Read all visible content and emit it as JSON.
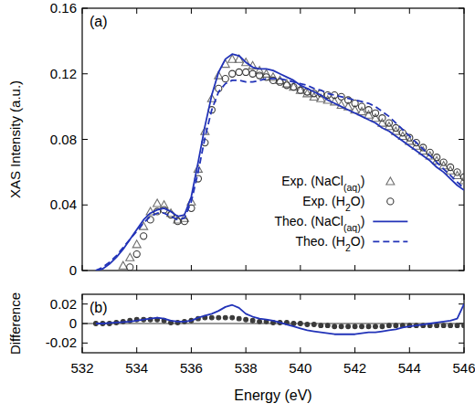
{
  "chart_data": [
    {
      "type": "line",
      "y_label": "XAS Intensity (a.u.)",
      "annotations": [
        {
          "text": "(a)"
        }
      ],
      "xlim": [
        532,
        546
      ],
      "xticks": [
        532,
        534,
        536,
        538,
        540,
        542,
        544,
        546
      ],
      "ylim": [
        0,
        0.16
      ],
      "yticks": [
        0,
        0.04,
        0.08,
        0.12,
        0.16
      ],
      "tick_labels": "y",
      "legend": "right",
      "x": [
        532.5,
        532.75,
        533,
        533.25,
        533.5,
        533.75,
        534,
        534.25,
        534.5,
        534.75,
        535,
        535.25,
        535.5,
        535.75,
        536,
        536.25,
        536.5,
        536.75,
        537,
        537.25,
        537.5,
        537.75,
        538,
        538.25,
        538.5,
        538.75,
        539,
        539.25,
        539.5,
        539.75,
        540,
        540.25,
        540.5,
        540.75,
        541,
        541.25,
        541.5,
        541.75,
        542,
        542.25,
        542.5,
        542.75,
        543,
        543.25,
        543.5,
        543.75,
        544,
        544.25,
        544.5,
        544.75,
        545,
        545.25,
        545.5,
        545.75,
        546
      ],
      "series": [
        {
          "name": "Exp. (NaCl(aq))",
          "type": "scatter",
          "marker": "triangle",
          "color": "#707070",
          "values": [
            null,
            null,
            null,
            null,
            0.003,
            0.008,
            0.016,
            0.027,
            0.036,
            0.041,
            0.04,
            0.035,
            0.031,
            0.032,
            0.042,
            0.062,
            0.085,
            0.105,
            0.119,
            0.126,
            0.129,
            0.129,
            0.127,
            0.125,
            0.122,
            0.12,
            0.118,
            0.116,
            0.114,
            0.112,
            0.11,
            0.108,
            0.106,
            0.105,
            0.104,
            0.103,
            0.101,
            0.1,
            0.098,
            0.097,
            0.095,
            0.093,
            0.09,
            0.088,
            0.085,
            0.082,
            0.079,
            0.076,
            0.073,
            0.07,
            0.067,
            0.064,
            0.061,
            0.058,
            0.055
          ]
        },
        {
          "name": "Exp. (H2O)",
          "type": "scatter",
          "marker": "circle",
          "color": "#3a3a3a",
          "values": [
            null,
            null,
            null,
            null,
            null,
            0.002,
            0.01,
            0.021,
            0.031,
            0.036,
            0.037,
            0.034,
            0.03,
            0.03,
            0.038,
            0.056,
            0.078,
            0.098,
            0.111,
            0.117,
            0.12,
            0.121,
            0.121,
            0.12,
            0.119,
            0.118,
            0.116,
            0.115,
            0.113,
            0.112,
            0.11,
            0.109,
            0.108,
            0.108,
            0.107,
            0.107,
            0.106,
            0.104,
            0.102,
            0.1,
            0.098,
            0.096,
            0.093,
            0.09,
            0.087,
            0.084,
            0.081,
            0.078,
            0.075,
            0.072,
            0.069,
            0.066,
            0.063,
            0.06,
            0.057
          ]
        },
        {
          "name": "Theo. (NaCl(aq))",
          "type": "line",
          "line_style": "solid",
          "color": "#2233b8",
          "values": [
            0,
            0.001,
            0.004,
            0.008,
            0.013,
            0.019,
            0.025,
            0.031,
            0.035,
            0.037,
            0.038,
            0.036,
            0.033,
            0.034,
            0.045,
            0.066,
            0.088,
            0.107,
            0.121,
            0.129,
            0.132,
            0.131,
            0.127,
            0.124,
            0.123,
            0.123,
            0.122,
            0.12,
            0.118,
            0.116,
            0.113,
            0.111,
            0.109,
            0.107,
            0.104,
            0.102,
            0.1,
            0.098,
            0.096,
            0.094,
            0.092,
            0.09,
            0.087,
            0.085,
            0.082,
            0.079,
            0.076,
            0.073,
            0.07,
            0.067,
            0.063,
            0.06,
            0.056,
            0.052,
            0.049
          ]
        },
        {
          "name": "Theo. (H2O)",
          "type": "line",
          "line_style": "dashed",
          "color": "#2233b8",
          "values": [
            0,
            0.002,
            0.005,
            0.009,
            0.014,
            0.019,
            0.024,
            0.029,
            0.033,
            0.035,
            0.035,
            0.033,
            0.031,
            0.032,
            0.042,
            0.06,
            0.081,
            0.098,
            0.109,
            0.114,
            0.116,
            0.116,
            0.115,
            0.115,
            0.116,
            0.117,
            0.117,
            0.117,
            0.116,
            0.115,
            0.114,
            0.113,
            0.111,
            0.11,
            0.108,
            0.107,
            0.106,
            0.105,
            0.104,
            0.103,
            0.102,
            0.1,
            0.097,
            0.094,
            0.09,
            0.086,
            0.082,
            0.078,
            0.074,
            0.07,
            0.066,
            0.062,
            0.058,
            0.054,
            0.05
          ]
        }
      ]
    },
    {
      "type": "line",
      "x_label": "Energy (eV)",
      "y_label": "Difference",
      "annotations": [
        {
          "text": "(b)"
        }
      ],
      "xlim": [
        532,
        546
      ],
      "xticks": [
        532,
        534,
        536,
        538,
        540,
        542,
        544,
        546
      ],
      "ylim": [
        -0.03,
        0.03
      ],
      "yticks": [
        -0.02,
        0,
        0.02
      ],
      "tick_labels": true,
      "x": [
        532.5,
        532.75,
        533,
        533.25,
        533.5,
        533.75,
        534,
        534.25,
        534.5,
        534.75,
        535,
        535.25,
        535.5,
        535.75,
        536,
        536.25,
        536.5,
        536.75,
        537,
        537.25,
        537.5,
        537.75,
        538,
        538.25,
        538.5,
        538.75,
        539,
        539.25,
        539.5,
        539.75,
        540,
        540.25,
        540.5,
        540.75,
        541,
        541.25,
        541.5,
        541.75,
        542,
        542.25,
        542.5,
        542.75,
        543,
        543.25,
        543.5,
        543.75,
        544,
        544.25,
        544.5,
        544.75,
        545,
        545.25,
        545.5,
        545.75,
        546
      ],
      "series": [
        {
          "type": "scatter",
          "marker": "circle",
          "color": "#3a3a3a",
          "values": [
            0,
            0,
            0,
            0.001,
            0.002,
            0.003,
            0.004,
            0.004,
            0.004,
            0.004,
            0.003,
            0.001,
            0.001,
            0.002,
            0.003,
            0.005,
            0.006,
            0.006,
            0.006,
            0.006,
            0.006,
            0.005,
            0.004,
            0.003,
            0.002,
            0.002,
            0.001,
            0.001,
            0.001,
            0,
            0,
            -0.001,
            -0.001,
            -0.002,
            -0.002,
            -0.003,
            -0.003,
            -0.003,
            -0.003,
            -0.003,
            -0.003,
            -0.003,
            -0.003,
            -0.002,
            -0.002,
            -0.002,
            -0.002,
            -0.002,
            -0.002,
            -0.002,
            -0.002,
            -0.002,
            -0.002,
            -0.002,
            -0.002
          ]
        },
        {
          "type": "line",
          "line_style": "solid",
          "color": "#2233b8",
          "values": [
            0,
            0,
            0.0005,
            0.001,
            0.0015,
            0.002,
            0.003,
            0.004,
            0.005,
            0.006,
            0.005,
            0.003,
            0.002,
            0.002,
            0.003,
            0.006,
            0.008,
            0.01,
            0.013,
            0.017,
            0.019,
            0.016,
            0.01,
            0.007,
            0.005,
            0.004,
            0.003,
            0.001,
            -0.001,
            -0.003,
            -0.005,
            -0.007,
            -0.008,
            -0.009,
            -0.01,
            -0.011,
            -0.011,
            -0.011,
            -0.011,
            -0.01,
            -0.009,
            -0.009,
            -0.008,
            -0.007,
            -0.006,
            -0.004,
            -0.003,
            -0.002,
            -0.001,
            0,
            0.001,
            0.002,
            0.003,
            0.005,
            0.02
          ]
        }
      ]
    }
  ]
}
